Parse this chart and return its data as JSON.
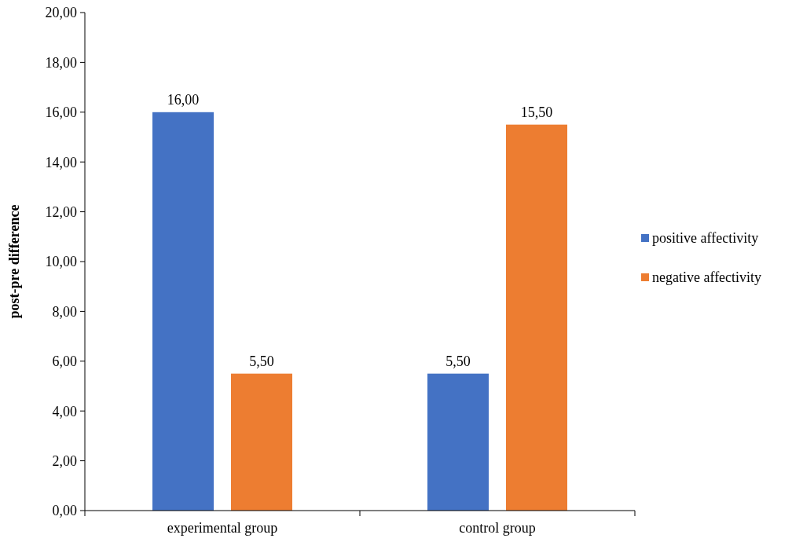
{
  "chart_data": {
    "type": "bar",
    "ylabel": "post-pre difference",
    "categories": [
      "experimental group",
      "control group"
    ],
    "series": [
      {
        "name": "positive affectivity",
        "color": "#4472c4",
        "values": [
          16,
          5.5
        ],
        "value_labels": [
          "16,00",
          "5,50"
        ]
      },
      {
        "name": "negative affectivity",
        "color": "#ed7d31",
        "values": [
          5.5,
          15.5
        ],
        "value_labels": [
          "5,50",
          "15,50"
        ]
      }
    ],
    "ylim": [
      0,
      20
    ],
    "yticks": [
      {
        "value": 0,
        "label": "0,00"
      },
      {
        "value": 2,
        "label": "2,00"
      },
      {
        "value": 4,
        "label": "4,00"
      },
      {
        "value": 6,
        "label": "6,00"
      },
      {
        "value": 8,
        "label": "8,00"
      },
      {
        "value": 10,
        "label": "10,00"
      },
      {
        "value": 12,
        "label": "12,00"
      },
      {
        "value": 14,
        "label": "14,00"
      },
      {
        "value": 16,
        "label": "16,00"
      },
      {
        "value": 18,
        "label": "18,00"
      },
      {
        "value": 20,
        "label": "20,00"
      }
    ],
    "legend": "right",
    "grid": false
  }
}
